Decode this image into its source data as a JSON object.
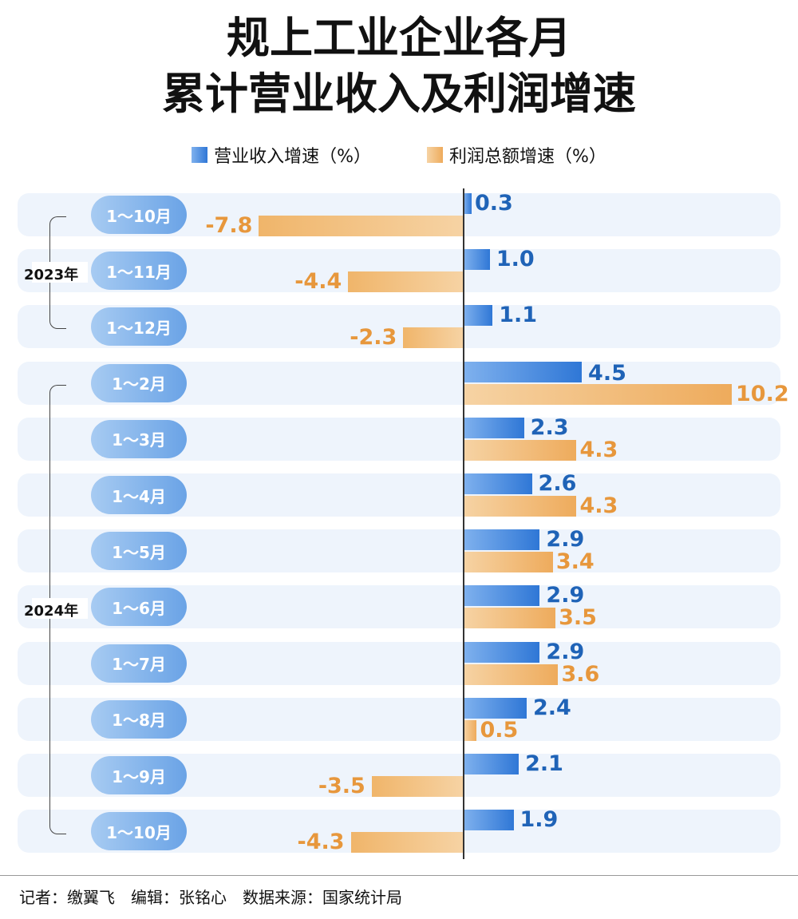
{
  "title_line1": "规上工业企业各月",
  "title_line2": "累计营业收入及利润增速",
  "footer": "记者：缴翼飞　编辑：张铭心　数据来源：国家统计局",
  "colors": {
    "revenue": "#2f77d6",
    "profit": "#eeab5c",
    "row_background": "#eef4fc"
  },
  "groups": [
    {
      "label": "2023年"
    },
    {
      "label": "2024年"
    }
  ],
  "chart_data": {
    "type": "bar",
    "orientation": "horizontal",
    "title": "规上工业企业各月累计营业收入及利润增速",
    "legend_placement": "top",
    "categories": [
      "1～10月",
      "1～11月",
      "1～12月",
      "1～2月",
      "1～3月",
      "1～4月",
      "1～5月",
      "1～6月",
      "1～7月",
      "1～8月",
      "1～9月",
      "1～10月"
    ],
    "category_groups": [
      "2023年",
      "2023年",
      "2023年",
      "2024年",
      "2024年",
      "2024年",
      "2024年",
      "2024年",
      "2024年",
      "2024年",
      "2024年",
      "2024年"
    ],
    "series": [
      {
        "name": "营业收入增速（%）",
        "values": [
          0.3,
          1.0,
          1.1,
          4.5,
          2.3,
          2.6,
          2.9,
          2.9,
          2.9,
          2.4,
          2.1,
          1.9
        ]
      },
      {
        "name": "利润总额增速（%）",
        "values": [
          -7.8,
          -4.4,
          -2.3,
          10.2,
          4.3,
          4.3,
          3.4,
          3.5,
          3.6,
          0.5,
          -3.5,
          -4.3
        ]
      }
    ],
    "value_labels": [
      [
        "0.3",
        "1.0",
        "1.1",
        "4.5",
        "2.3",
        "2.6",
        "2.9",
        "2.9",
        "2.9",
        "2.4",
        "2.1",
        "1.9"
      ],
      [
        "-7.8",
        "-4.4",
        "-2.3",
        "10.2",
        "4.3",
        "4.3",
        "3.4",
        "3.5",
        "3.6",
        "0.5",
        "-3.5",
        "-4.3"
      ]
    ],
    "grid": false
  }
}
